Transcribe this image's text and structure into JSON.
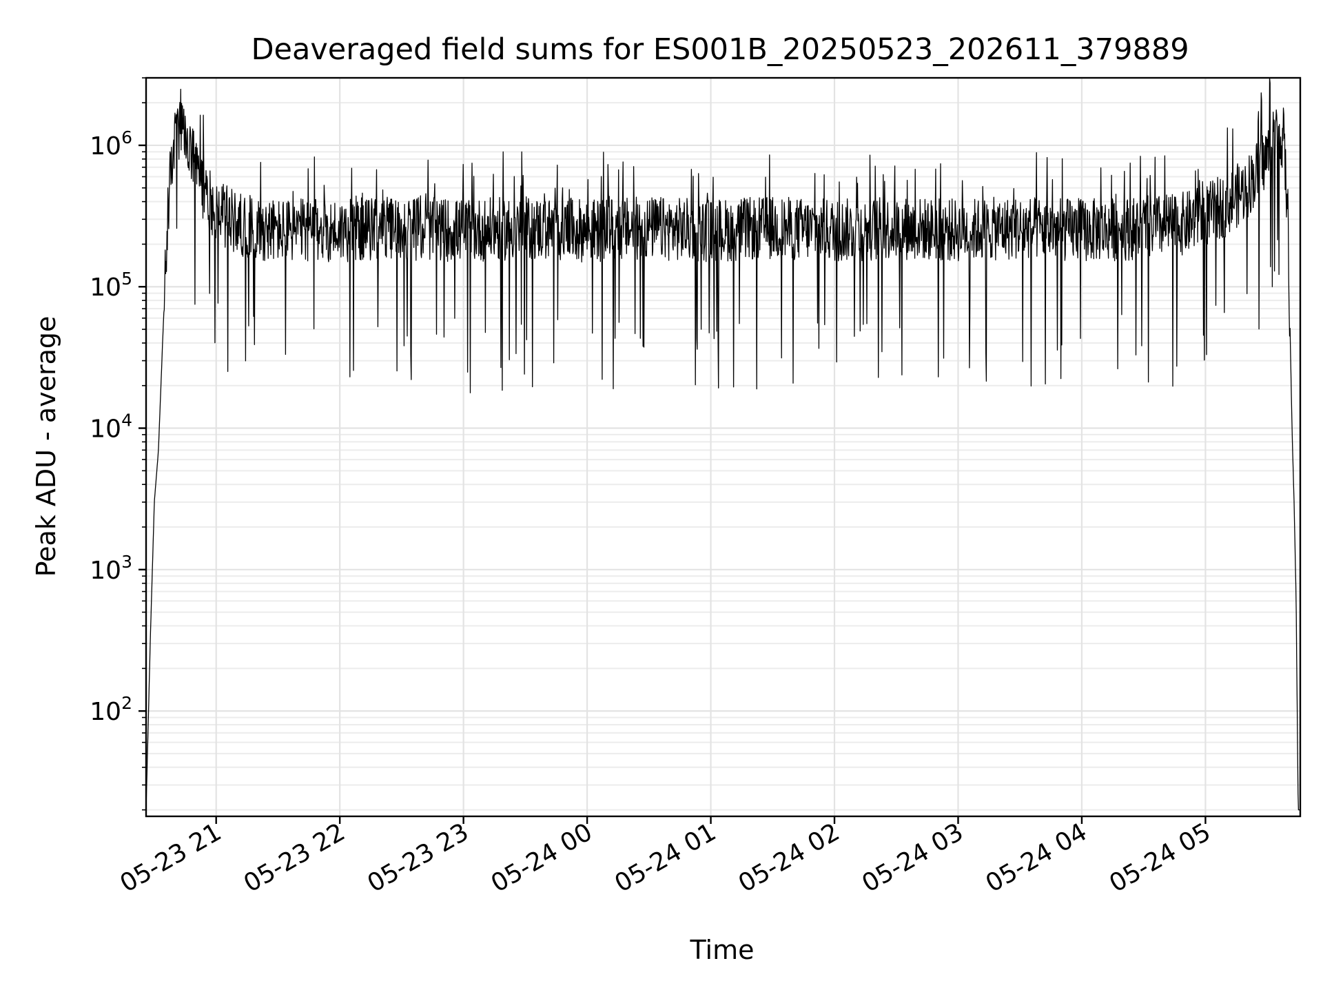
{
  "chart_data": {
    "type": "line",
    "title": "Deaveraged field sums for ES001B_20250523_202611_379889",
    "xlabel": "Time",
    "ylabel": "Peak ADU - average",
    "x_ticks": [
      "05-23 21",
      "05-23 22",
      "05-23 23",
      "05-24 00",
      "05-24 01",
      "05-24 02",
      "05-24 03",
      "05-24 04",
      "05-24 05"
    ],
    "xlim": [
      "2025-05-23 20:26",
      "2025-05-24 05:46"
    ],
    "y_scale": "log",
    "ylim": [
      18,
      3000000
    ],
    "y_ticks": [
      {
        "base": "10",
        "exp": "2"
      },
      {
        "base": "10",
        "exp": "3"
      },
      {
        "base": "10",
        "exp": "4"
      },
      {
        "base": "10",
        "exp": "5"
      },
      {
        "base": "10",
        "exp": "6"
      }
    ],
    "grid": "major and minor",
    "color": "#000000",
    "series": [
      {
        "x": [
          "2025-05-23 20:26",
          "2025-05-23 20:28",
          "2025-05-23 20:30",
          "2025-05-23 20:32",
          "2025-05-23 20:34",
          "2025-05-23 20:36",
          "2025-05-23 20:38",
          "2025-05-23 20:40",
          "2025-05-23 20:43",
          "2025-05-23 20:46",
          "2025-05-23 20:50",
          "2025-05-23 20:55",
          "2025-05-23 21:00",
          "2025-05-23 21:10",
          "2025-05-23 21:20",
          "2025-05-23 21:30",
          "2025-05-23 22:00",
          "2025-05-23 22:30",
          "2025-05-23 23:00",
          "2025-05-23 23:30",
          "2025-05-24 00:00",
          "2025-05-24 00:30",
          "2025-05-24 01:00",
          "2025-05-24 01:30",
          "2025-05-24 02:00",
          "2025-05-24 02:30",
          "2025-05-24 03:00",
          "2025-05-24 03:30",
          "2025-05-24 04:00",
          "2025-05-24 04:30",
          "2025-05-24 04:50",
          "2025-05-24 05:00",
          "2025-05-24 05:10",
          "2025-05-24 05:20",
          "2025-05-24 05:30",
          "2025-05-24 05:35",
          "2025-05-24 05:38",
          "2025-05-24 05:40",
          "2025-05-24 05:42",
          "2025-05-24 05:43",
          "2025-05-24 05:44",
          "2025-05-24 05:45"
        ],
        "y": [
          20,
          300,
          3000,
          7000,
          40000,
          200000,
          700000,
          1100000,
          1250000,
          1000000,
          700000,
          450000,
          350000,
          280000,
          260000,
          250000,
          250000,
          260000,
          250000,
          260000,
          250000,
          260000,
          250000,
          260000,
          250000,
          260000,
          250000,
          260000,
          250000,
          260000,
          280000,
          320000,
          380000,
          500000,
          850000,
          1250000,
          1100000,
          300000,
          10000,
          3000,
          600,
          20
        ]
      }
    ]
  }
}
